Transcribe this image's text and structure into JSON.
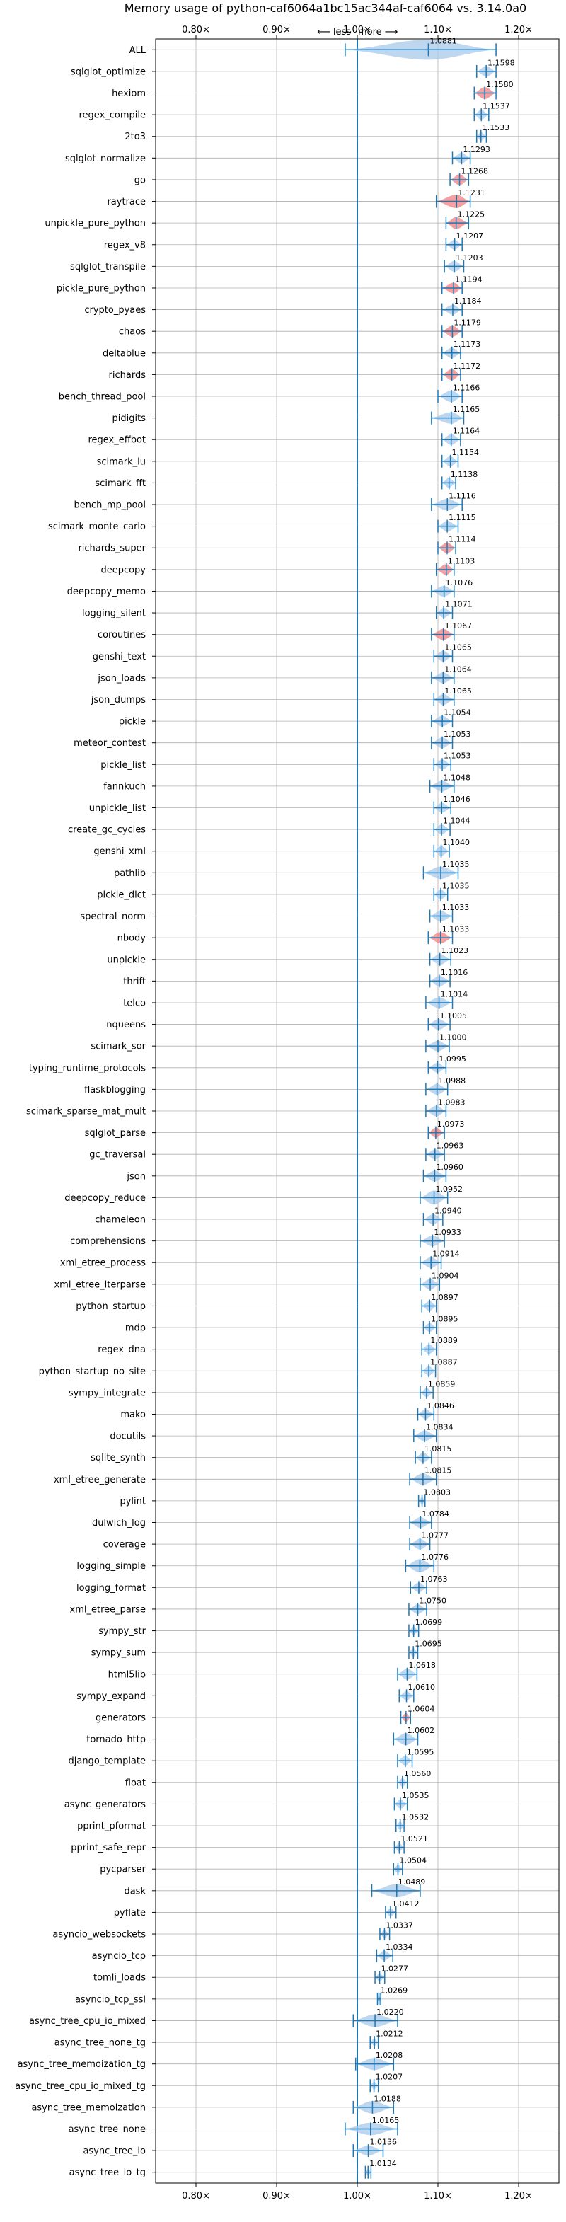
{
  "chart_data": {
    "type": "violin",
    "title": "Memory usage of python-caf6064a1bc15ac344af-caf6064 vs. 3.14.0a0",
    "direction_less": "⟵ less",
    "direction_more": "more ⟶",
    "xlim": [
      0.75,
      1.25
    ],
    "xticks": [
      0.8,
      0.9,
      1.0,
      1.1,
      1.2
    ],
    "xtick_labels": [
      "0.80×",
      "0.90×",
      "1.00×",
      "1.10×",
      "1.20×"
    ],
    "baseline": 1.0,
    "grid": true,
    "colors": {
      "normal": "#1f77b4",
      "highlight": "#f08080",
      "fill_normal": "#a9c9e8"
    },
    "benchmarks": [
      {
        "name": "ALL",
        "value": 1.0881,
        "label": "1.0881",
        "min": 0.985,
        "max": 1.172,
        "width": 0.04,
        "highlight": false
      },
      {
        "name": "sqlglot_optimize",
        "value": 1.1598,
        "label": "1.1598",
        "min": 1.148,
        "max": 1.172,
        "width": 0.012,
        "highlight": false
      },
      {
        "name": "hexiom",
        "value": 1.158,
        "label": "1.1580",
        "min": 1.145,
        "max": 1.172,
        "width": 0.015,
        "highlight": true
      },
      {
        "name": "regex_compile",
        "value": 1.1537,
        "label": "1.1537",
        "min": 1.145,
        "max": 1.163,
        "width": 0.01,
        "highlight": false
      },
      {
        "name": "2to3",
        "value": 1.1533,
        "label": "1.1533",
        "min": 1.148,
        "max": 1.16,
        "width": 0.008,
        "highlight": false
      },
      {
        "name": "sqlglot_normalize",
        "value": 1.1293,
        "label": "1.1293",
        "min": 1.118,
        "max": 1.14,
        "width": 0.012,
        "highlight": false
      },
      {
        "name": "go",
        "value": 1.1268,
        "label": "1.1268",
        "min": 1.115,
        "max": 1.138,
        "width": 0.012,
        "highlight": true
      },
      {
        "name": "raytrace",
        "value": 1.1231,
        "label": "1.1231",
        "min": 1.098,
        "max": 1.14,
        "width": 0.018,
        "highlight": true
      },
      {
        "name": "unpickle_pure_python",
        "value": 1.1225,
        "label": "1.1225",
        "min": 1.11,
        "max": 1.138,
        "width": 0.015,
        "highlight": true
      },
      {
        "name": "regex_v8",
        "value": 1.1207,
        "label": "1.1207",
        "min": 1.11,
        "max": 1.13,
        "width": 0.01,
        "highlight": false
      },
      {
        "name": "sqlglot_transpile",
        "value": 1.1203,
        "label": "1.1203",
        "min": 1.108,
        "max": 1.132,
        "width": 0.012,
        "highlight": false
      },
      {
        "name": "pickle_pure_python",
        "value": 1.1194,
        "label": "1.1194",
        "min": 1.105,
        "max": 1.13,
        "width": 0.012,
        "highlight": true
      },
      {
        "name": "crypto_pyaes",
        "value": 1.1184,
        "label": "1.1184",
        "min": 1.105,
        "max": 1.13,
        "width": 0.01,
        "highlight": false
      },
      {
        "name": "chaos",
        "value": 1.1179,
        "label": "1.1179",
        "min": 1.105,
        "max": 1.13,
        "width": 0.013,
        "highlight": true
      },
      {
        "name": "deltablue",
        "value": 1.1173,
        "label": "1.1173",
        "min": 1.105,
        "max": 1.128,
        "width": 0.012,
        "highlight": false
      },
      {
        "name": "richards",
        "value": 1.1172,
        "label": "1.1172",
        "min": 1.105,
        "max": 1.128,
        "width": 0.013,
        "highlight": true
      },
      {
        "name": "bench_thread_pool",
        "value": 1.1166,
        "label": "1.1166",
        "min": 1.1,
        "max": 1.13,
        "width": 0.014,
        "highlight": false
      },
      {
        "name": "pidigits",
        "value": 1.1165,
        "label": "1.1165",
        "min": 1.092,
        "max": 1.132,
        "width": 0.014,
        "highlight": false
      },
      {
        "name": "regex_effbot",
        "value": 1.1164,
        "label": "1.1164",
        "min": 1.105,
        "max": 1.128,
        "width": 0.012,
        "highlight": false
      },
      {
        "name": "scimark_lu",
        "value": 1.1154,
        "label": "1.1154",
        "min": 1.105,
        "max": 1.125,
        "width": 0.01,
        "highlight": false
      },
      {
        "name": "scimark_fft",
        "value": 1.1138,
        "label": "1.1138",
        "min": 1.105,
        "max": 1.122,
        "width": 0.01,
        "highlight": false
      },
      {
        "name": "bench_mp_pool",
        "value": 1.1116,
        "label": "1.1116",
        "min": 1.092,
        "max": 1.13,
        "width": 0.014,
        "highlight": false
      },
      {
        "name": "scimark_monte_carlo",
        "value": 1.1115,
        "label": "1.1115",
        "min": 1.1,
        "max": 1.125,
        "width": 0.012,
        "highlight": false
      },
      {
        "name": "richards_super",
        "value": 1.1114,
        "label": "1.1114",
        "min": 1.1,
        "max": 1.122,
        "width": 0.012,
        "highlight": true
      },
      {
        "name": "deepcopy",
        "value": 1.1103,
        "label": "1.1103",
        "min": 1.098,
        "max": 1.12,
        "width": 0.012,
        "highlight": true
      },
      {
        "name": "deepcopy_memo",
        "value": 1.1076,
        "label": "1.1076",
        "min": 1.092,
        "max": 1.12,
        "width": 0.012,
        "highlight": false
      },
      {
        "name": "logging_silent",
        "value": 1.1071,
        "label": "1.1071",
        "min": 1.098,
        "max": 1.118,
        "width": 0.01,
        "highlight": false
      },
      {
        "name": "coroutines",
        "value": 1.1067,
        "label": "1.1067",
        "min": 1.092,
        "max": 1.12,
        "width": 0.013,
        "highlight": true
      },
      {
        "name": "genshi_text",
        "value": 1.1065,
        "label": "1.1065",
        "min": 1.095,
        "max": 1.118,
        "width": 0.012,
        "highlight": false
      },
      {
        "name": "json_loads",
        "value": 1.1064,
        "label": "1.1064",
        "min": 1.092,
        "max": 1.12,
        "width": 0.012,
        "highlight": false
      },
      {
        "name": "json_dumps",
        "value": 1.1065,
        "label": "1.1065",
        "min": 1.095,
        "max": 1.12,
        "width": 0.012,
        "highlight": false
      },
      {
        "name": "pickle",
        "value": 1.1054,
        "label": "1.1054",
        "min": 1.092,
        "max": 1.118,
        "width": 0.012,
        "highlight": false
      },
      {
        "name": "meteor_contest",
        "value": 1.1053,
        "label": "1.1053",
        "min": 1.092,
        "max": 1.118,
        "width": 0.012,
        "highlight": false
      },
      {
        "name": "pickle_list",
        "value": 1.1053,
        "label": "1.1053",
        "min": 1.095,
        "max": 1.116,
        "width": 0.01,
        "highlight": false
      },
      {
        "name": "fannkuch",
        "value": 1.1048,
        "label": "1.1048",
        "min": 1.09,
        "max": 1.12,
        "width": 0.012,
        "highlight": false
      },
      {
        "name": "unpickle_list",
        "value": 1.1046,
        "label": "1.1046",
        "min": 1.095,
        "max": 1.116,
        "width": 0.01,
        "highlight": false
      },
      {
        "name": "create_gc_cycles",
        "value": 1.1044,
        "label": "1.1044",
        "min": 1.095,
        "max": 1.115,
        "width": 0.01,
        "highlight": false
      },
      {
        "name": "genshi_xml",
        "value": 1.104,
        "label": "1.1040",
        "min": 1.095,
        "max": 1.114,
        "width": 0.01,
        "highlight": false
      },
      {
        "name": "pathlib",
        "value": 1.1035,
        "label": "1.1035",
        "min": 1.082,
        "max": 1.125,
        "width": 0.016,
        "highlight": false
      },
      {
        "name": "pickle_dict",
        "value": 1.1035,
        "label": "1.1035",
        "min": 1.095,
        "max": 1.112,
        "width": 0.01,
        "highlight": false
      },
      {
        "name": "spectral_norm",
        "value": 1.1033,
        "label": "1.1033",
        "min": 1.09,
        "max": 1.118,
        "width": 0.012,
        "highlight": false
      },
      {
        "name": "nbody",
        "value": 1.1033,
        "label": "1.1033",
        "min": 1.088,
        "max": 1.118,
        "width": 0.013,
        "highlight": true
      },
      {
        "name": "unpickle",
        "value": 1.1023,
        "label": "1.1023",
        "min": 1.09,
        "max": 1.116,
        "width": 0.012,
        "highlight": false
      },
      {
        "name": "thrift",
        "value": 1.1016,
        "label": "1.1016",
        "min": 1.09,
        "max": 1.115,
        "width": 0.012,
        "highlight": false
      },
      {
        "name": "telco",
        "value": 1.1014,
        "label": "1.1014",
        "min": 1.085,
        "max": 1.118,
        "width": 0.012,
        "highlight": false
      },
      {
        "name": "nqueens",
        "value": 1.1005,
        "label": "1.1005",
        "min": 1.088,
        "max": 1.115,
        "width": 0.012,
        "highlight": false
      },
      {
        "name": "scimark_sor",
        "value": 1.1,
        "label": "1.1000",
        "min": 1.085,
        "max": 1.114,
        "width": 0.012,
        "highlight": false
      },
      {
        "name": "typing_runtime_protocols",
        "value": 1.0995,
        "label": "1.0995",
        "min": 1.088,
        "max": 1.11,
        "width": 0.01,
        "highlight": false
      },
      {
        "name": "flaskblogging",
        "value": 1.0988,
        "label": "1.0988",
        "min": 1.085,
        "max": 1.112,
        "width": 0.012,
        "highlight": false
      },
      {
        "name": "scimark_sparse_mat_mult",
        "value": 1.0983,
        "label": "1.0983",
        "min": 1.085,
        "max": 1.11,
        "width": 0.012,
        "highlight": false
      },
      {
        "name": "sqlglot_parse",
        "value": 1.0973,
        "label": "1.0973",
        "min": 1.088,
        "max": 1.108,
        "width": 0.01,
        "highlight": true
      },
      {
        "name": "gc_traversal",
        "value": 1.0963,
        "label": "1.0963",
        "min": 1.085,
        "max": 1.108,
        "width": 0.01,
        "highlight": false
      },
      {
        "name": "json",
        "value": 1.096,
        "label": "1.0960",
        "min": 1.082,
        "max": 1.11,
        "width": 0.012,
        "highlight": false
      },
      {
        "name": "deepcopy_reduce",
        "value": 1.0952,
        "label": "1.0952",
        "min": 1.078,
        "max": 1.112,
        "width": 0.02,
        "highlight": false
      },
      {
        "name": "chameleon",
        "value": 1.094,
        "label": "1.0940",
        "min": 1.082,
        "max": 1.106,
        "width": 0.01,
        "highlight": false
      },
      {
        "name": "comprehensions",
        "value": 1.0933,
        "label": "1.0933",
        "min": 1.078,
        "max": 1.108,
        "width": 0.012,
        "highlight": false
      },
      {
        "name": "xml_etree_process",
        "value": 1.0914,
        "label": "1.0914",
        "min": 1.078,
        "max": 1.104,
        "width": 0.012,
        "highlight": false
      },
      {
        "name": "xml_etree_iterparse",
        "value": 1.0904,
        "label": "1.0904",
        "min": 1.078,
        "max": 1.102,
        "width": 0.012,
        "highlight": false
      },
      {
        "name": "python_startup",
        "value": 1.0897,
        "label": "1.0897",
        "min": 1.08,
        "max": 1.098,
        "width": 0.01,
        "highlight": false
      },
      {
        "name": "mdp",
        "value": 1.0895,
        "label": "1.0895",
        "min": 1.082,
        "max": 1.098,
        "width": 0.008,
        "highlight": false
      },
      {
        "name": "regex_dna",
        "value": 1.0889,
        "label": "1.0889",
        "min": 1.08,
        "max": 1.098,
        "width": 0.009,
        "highlight": false
      },
      {
        "name": "python_startup_no_site",
        "value": 1.0887,
        "label": "1.0887",
        "min": 1.08,
        "max": 1.097,
        "width": 0.009,
        "highlight": false
      },
      {
        "name": "sympy_integrate",
        "value": 1.0859,
        "label": "1.0859",
        "min": 1.078,
        "max": 1.094,
        "width": 0.008,
        "highlight": false
      },
      {
        "name": "mako",
        "value": 1.0846,
        "label": "1.0846",
        "min": 1.075,
        "max": 1.095,
        "width": 0.01,
        "highlight": false
      },
      {
        "name": "docutils",
        "value": 1.0834,
        "label": "1.0834",
        "min": 1.07,
        "max": 1.098,
        "width": 0.012,
        "highlight": false
      },
      {
        "name": "sqlite_synth",
        "value": 1.0815,
        "label": "1.0815",
        "min": 1.072,
        "max": 1.092,
        "width": 0.01,
        "highlight": false
      },
      {
        "name": "xml_etree_generate",
        "value": 1.0815,
        "label": "1.0815",
        "min": 1.065,
        "max": 1.098,
        "width": 0.014,
        "highlight": false
      },
      {
        "name": "pylint",
        "value": 1.0803,
        "label": "1.0803",
        "min": 1.076,
        "max": 1.084,
        "width": 0.005,
        "highlight": false
      },
      {
        "name": "dulwich_log",
        "value": 1.0784,
        "label": "1.0784",
        "min": 1.065,
        "max": 1.092,
        "width": 0.012,
        "highlight": false
      },
      {
        "name": "coverage",
        "value": 1.0777,
        "label": "1.0777",
        "min": 1.065,
        "max": 1.09,
        "width": 0.012,
        "highlight": false
      },
      {
        "name": "logging_simple",
        "value": 1.0776,
        "label": "1.0776",
        "min": 1.06,
        "max": 1.095,
        "width": 0.018,
        "highlight": false
      },
      {
        "name": "logging_format",
        "value": 1.0763,
        "label": "1.0763",
        "min": 1.066,
        "max": 1.086,
        "width": 0.01,
        "highlight": false
      },
      {
        "name": "xml_etree_parse",
        "value": 1.075,
        "label": "1.0750",
        "min": 1.064,
        "max": 1.086,
        "width": 0.01,
        "highlight": false
      },
      {
        "name": "sympy_str",
        "value": 1.0699,
        "label": "1.0699",
        "min": 1.064,
        "max": 1.076,
        "width": 0.007,
        "highlight": false
      },
      {
        "name": "sympy_sum",
        "value": 1.0695,
        "label": "1.0695",
        "min": 1.064,
        "max": 1.075,
        "width": 0.007,
        "highlight": false
      },
      {
        "name": "html5lib",
        "value": 1.0618,
        "label": "1.0618",
        "min": 1.05,
        "max": 1.074,
        "width": 0.012,
        "highlight": false
      },
      {
        "name": "sympy_expand",
        "value": 1.061,
        "label": "1.0610",
        "min": 1.052,
        "max": 1.07,
        "width": 0.008,
        "highlight": false
      },
      {
        "name": "generators",
        "value": 1.0604,
        "label": "1.0604",
        "min": 1.054,
        "max": 1.066,
        "width": 0.007,
        "highlight": true
      },
      {
        "name": "tornado_http",
        "value": 1.0602,
        "label": "1.0602",
        "min": 1.045,
        "max": 1.075,
        "width": 0.015,
        "highlight": false
      },
      {
        "name": "django_template",
        "value": 1.0595,
        "label": "1.0595",
        "min": 1.05,
        "max": 1.068,
        "width": 0.009,
        "highlight": false
      },
      {
        "name": "float",
        "value": 1.056,
        "label": "1.0560",
        "min": 1.05,
        "max": 1.062,
        "width": 0.007,
        "highlight": false
      },
      {
        "name": "async_generators",
        "value": 1.0535,
        "label": "1.0535",
        "min": 1.046,
        "max": 1.062,
        "width": 0.008,
        "highlight": false
      },
      {
        "name": "pprint_pformat",
        "value": 1.0532,
        "label": "1.0532",
        "min": 1.048,
        "max": 1.058,
        "width": 0.006,
        "highlight": false
      },
      {
        "name": "pprint_safe_repr",
        "value": 1.0521,
        "label": "1.0521",
        "min": 1.046,
        "max": 1.058,
        "width": 0.006,
        "highlight": false
      },
      {
        "name": "pycparser",
        "value": 1.0504,
        "label": "1.0504",
        "min": 1.045,
        "max": 1.056,
        "width": 0.006,
        "highlight": false
      },
      {
        "name": "dask",
        "value": 1.0489,
        "label": "1.0489",
        "min": 1.018,
        "max": 1.078,
        "width": 0.018,
        "highlight": false
      },
      {
        "name": "pyflate",
        "value": 1.0412,
        "label": "1.0412",
        "min": 1.035,
        "max": 1.048,
        "width": 0.007,
        "highlight": false
      },
      {
        "name": "asyncio_websockets",
        "value": 1.0337,
        "label": "1.0337",
        "min": 1.028,
        "max": 1.04,
        "width": 0.006,
        "highlight": false
      },
      {
        "name": "asyncio_tcp",
        "value": 1.0334,
        "label": "1.0334",
        "min": 1.024,
        "max": 1.044,
        "width": 0.01,
        "highlight": false
      },
      {
        "name": "tomli_loads",
        "value": 1.0277,
        "label": "1.0277",
        "min": 1.022,
        "max": 1.034,
        "width": 0.006,
        "highlight": false
      },
      {
        "name": "asyncio_tcp_ssl",
        "value": 1.0269,
        "label": "1.0269",
        "min": 1.025,
        "max": 1.029,
        "width": 0.004,
        "highlight": false
      },
      {
        "name": "async_tree_cpu_io_mixed",
        "value": 1.022,
        "label": "1.0220",
        "min": 0.995,
        "max": 1.05,
        "width": 0.016,
        "highlight": false
      },
      {
        "name": "async_tree_none_tg",
        "value": 1.0212,
        "label": "1.0212",
        "min": 1.016,
        "max": 1.026,
        "width": 0.005,
        "highlight": false
      },
      {
        "name": "async_tree_memoization_tg",
        "value": 1.0208,
        "label": "1.0208",
        "min": 0.998,
        "max": 1.045,
        "width": 0.015,
        "highlight": false
      },
      {
        "name": "async_tree_cpu_io_mixed_tg",
        "value": 1.0207,
        "label": "1.0207",
        "min": 1.016,
        "max": 1.026,
        "width": 0.005,
        "highlight": false
      },
      {
        "name": "async_tree_memoization",
        "value": 1.0188,
        "label": "1.0188",
        "min": 0.995,
        "max": 1.045,
        "width": 0.016,
        "highlight": false
      },
      {
        "name": "async_tree_none",
        "value": 1.0165,
        "label": "1.0165",
        "min": 0.985,
        "max": 1.05,
        "width": 0.016,
        "highlight": false
      },
      {
        "name": "async_tree_io",
        "value": 1.0136,
        "label": "1.0136",
        "min": 0.995,
        "max": 1.032,
        "width": 0.01,
        "highlight": false
      },
      {
        "name": "async_tree_io_tg",
        "value": 1.0134,
        "label": "1.0134",
        "min": 1.01,
        "max": 1.017,
        "width": 0.004,
        "highlight": false
      }
    ]
  }
}
